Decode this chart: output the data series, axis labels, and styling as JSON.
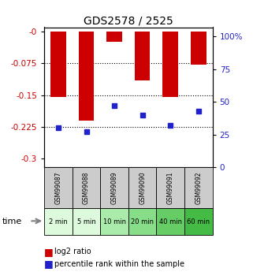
{
  "title": "GDS2578 / 2525",
  "samples": [
    "GSM99087",
    "GSM99088",
    "GSM99089",
    "GSM99090",
    "GSM99091",
    "GSM99092"
  ],
  "time_labels": [
    "2 min",
    "5 min",
    "10 min",
    "20 min",
    "40 min",
    "60 min"
  ],
  "log2_values": [
    -0.155,
    -0.21,
    -0.025,
    -0.115,
    -0.155,
    -0.078
  ],
  "percentile_values": [
    30,
    27,
    47,
    40,
    32,
    43
  ],
  "ylim_left": [
    -0.32,
    0.01
  ],
  "ylim_right": [
    0,
    107
  ],
  "yticks_left": [
    0,
    -0.075,
    -0.15,
    -0.225,
    -0.3
  ],
  "yticks_right": [
    0,
    25,
    50,
    75,
    100
  ],
  "left_color": "#cc0000",
  "right_color": "#2222cc",
  "bar_width": 0.55,
  "time_bg_colors": [
    "#ddfadd",
    "#ddfadd",
    "#aaeaaa",
    "#88dd88",
    "#66cc66",
    "#44bb44"
  ],
  "sample_bg_color": "#cccccc",
  "dotted_yticks": [
    -0.075,
    -0.15,
    -0.225
  ]
}
